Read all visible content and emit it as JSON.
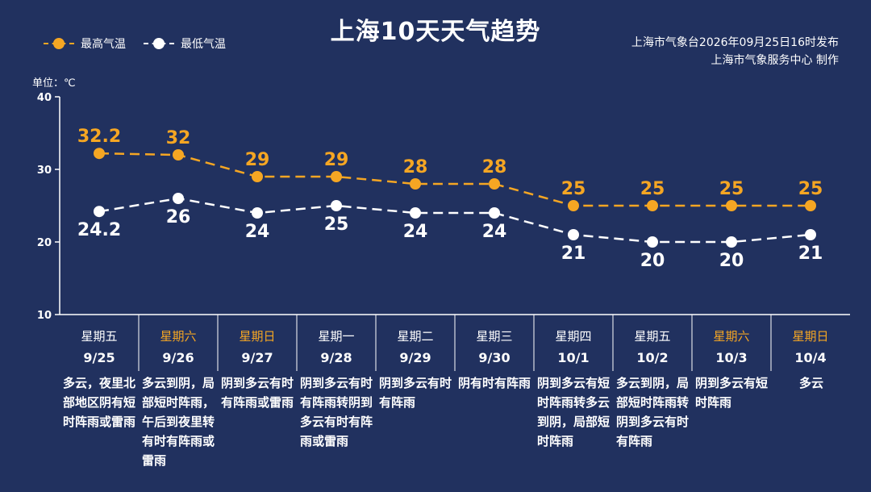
{
  "title": "上海10天天气趋势",
  "legend": {
    "high_label": "最高气温",
    "low_label": "最低气温"
  },
  "source": {
    "line1": "上海市气象台2026年09月25日16时发布",
    "line2": "上海市气象服务中心  制作"
  },
  "unit_label": "单位：℃",
  "colors": {
    "background": "#21315f",
    "high": "#f5a623",
    "low": "#ffffff",
    "weekend": "#f5a623",
    "axis": "#ffffff"
  },
  "chart_data": {
    "type": "line",
    "title": "上海10天天气趋势",
    "ylabel": "单位：℃",
    "ylim": [
      10,
      40
    ],
    "yticks": [
      10,
      20,
      30,
      40
    ],
    "grid": false,
    "legend_position": "top-left",
    "categories": [
      "9/25",
      "9/26",
      "9/27",
      "9/28",
      "9/29",
      "9/30",
      "10/1",
      "10/2",
      "10/3",
      "10/4"
    ],
    "series": [
      {
        "name": "最高气温",
        "values": [
          32.2,
          32,
          29,
          29,
          28,
          28,
          25,
          25,
          25,
          25
        ],
        "labels": [
          "32.2",
          "32",
          "29",
          "29",
          "28",
          "28",
          "25",
          "25",
          "25",
          "25"
        ]
      },
      {
        "name": "最低气温",
        "values": [
          24.2,
          26,
          24,
          25,
          24,
          24,
          21,
          20,
          20,
          21
        ],
        "labels": [
          "24.2",
          "26",
          "24",
          "25",
          "24",
          "24",
          "21",
          "20",
          "20",
          "21"
        ]
      }
    ]
  },
  "days": [
    {
      "weekday": "星期五",
      "date": "9/25",
      "weekend": false,
      "desc": "多云，夜里北部地区阴有短时阵雨或雷雨"
    },
    {
      "weekday": "星期六",
      "date": "9/26",
      "weekend": true,
      "desc": "多云到阴，局部短时阵雨，午后到夜里转有时有阵雨或雷雨"
    },
    {
      "weekday": "星期日",
      "date": "9/27",
      "weekend": true,
      "desc": "阴到多云有时有阵雨或雷雨"
    },
    {
      "weekday": "星期一",
      "date": "9/28",
      "weekend": false,
      "desc": "阴到多云有时有阵雨转阴到多云有时有阵雨或雷雨"
    },
    {
      "weekday": "星期二",
      "date": "9/29",
      "weekend": false,
      "desc": "阴到多云有时有阵雨"
    },
    {
      "weekday": "星期三",
      "date": "9/30",
      "weekend": false,
      "desc": "阴有时有阵雨"
    },
    {
      "weekday": "星期四",
      "date": "10/1",
      "weekend": false,
      "desc": "阴到多云有短时阵雨转多云到阴，局部短时阵雨"
    },
    {
      "weekday": "星期五",
      "date": "10/2",
      "weekend": false,
      "desc": "多云到阴，局部短时阵雨转阴到多云有时有阵雨"
    },
    {
      "weekday": "星期六",
      "date": "10/3",
      "weekend": true,
      "desc": "阴到多云有短时阵雨"
    },
    {
      "weekday": "星期日",
      "date": "10/4",
      "weekend": true,
      "desc": "多云"
    }
  ]
}
